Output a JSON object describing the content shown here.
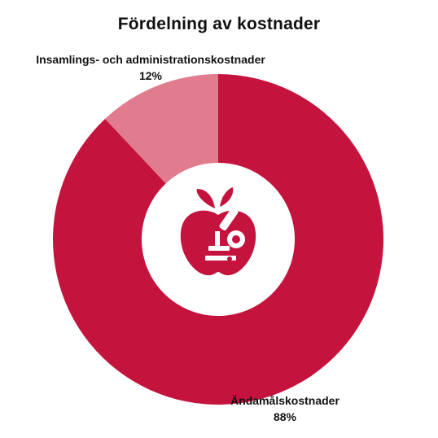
{
  "chart_data": {
    "type": "pie",
    "title": "Fördelning av kostnader",
    "categories": [
      "Insamlings- och administrationskostnader",
      "Ändamålskostnader"
    ],
    "values": [
      12,
      88
    ],
    "value_labels": [
      "12%",
      "88%"
    ],
    "colors": [
      "#e07c8e",
      "#c4143e"
    ],
    "center_icon": "apple-microscope-icon",
    "legend": "none"
  }
}
